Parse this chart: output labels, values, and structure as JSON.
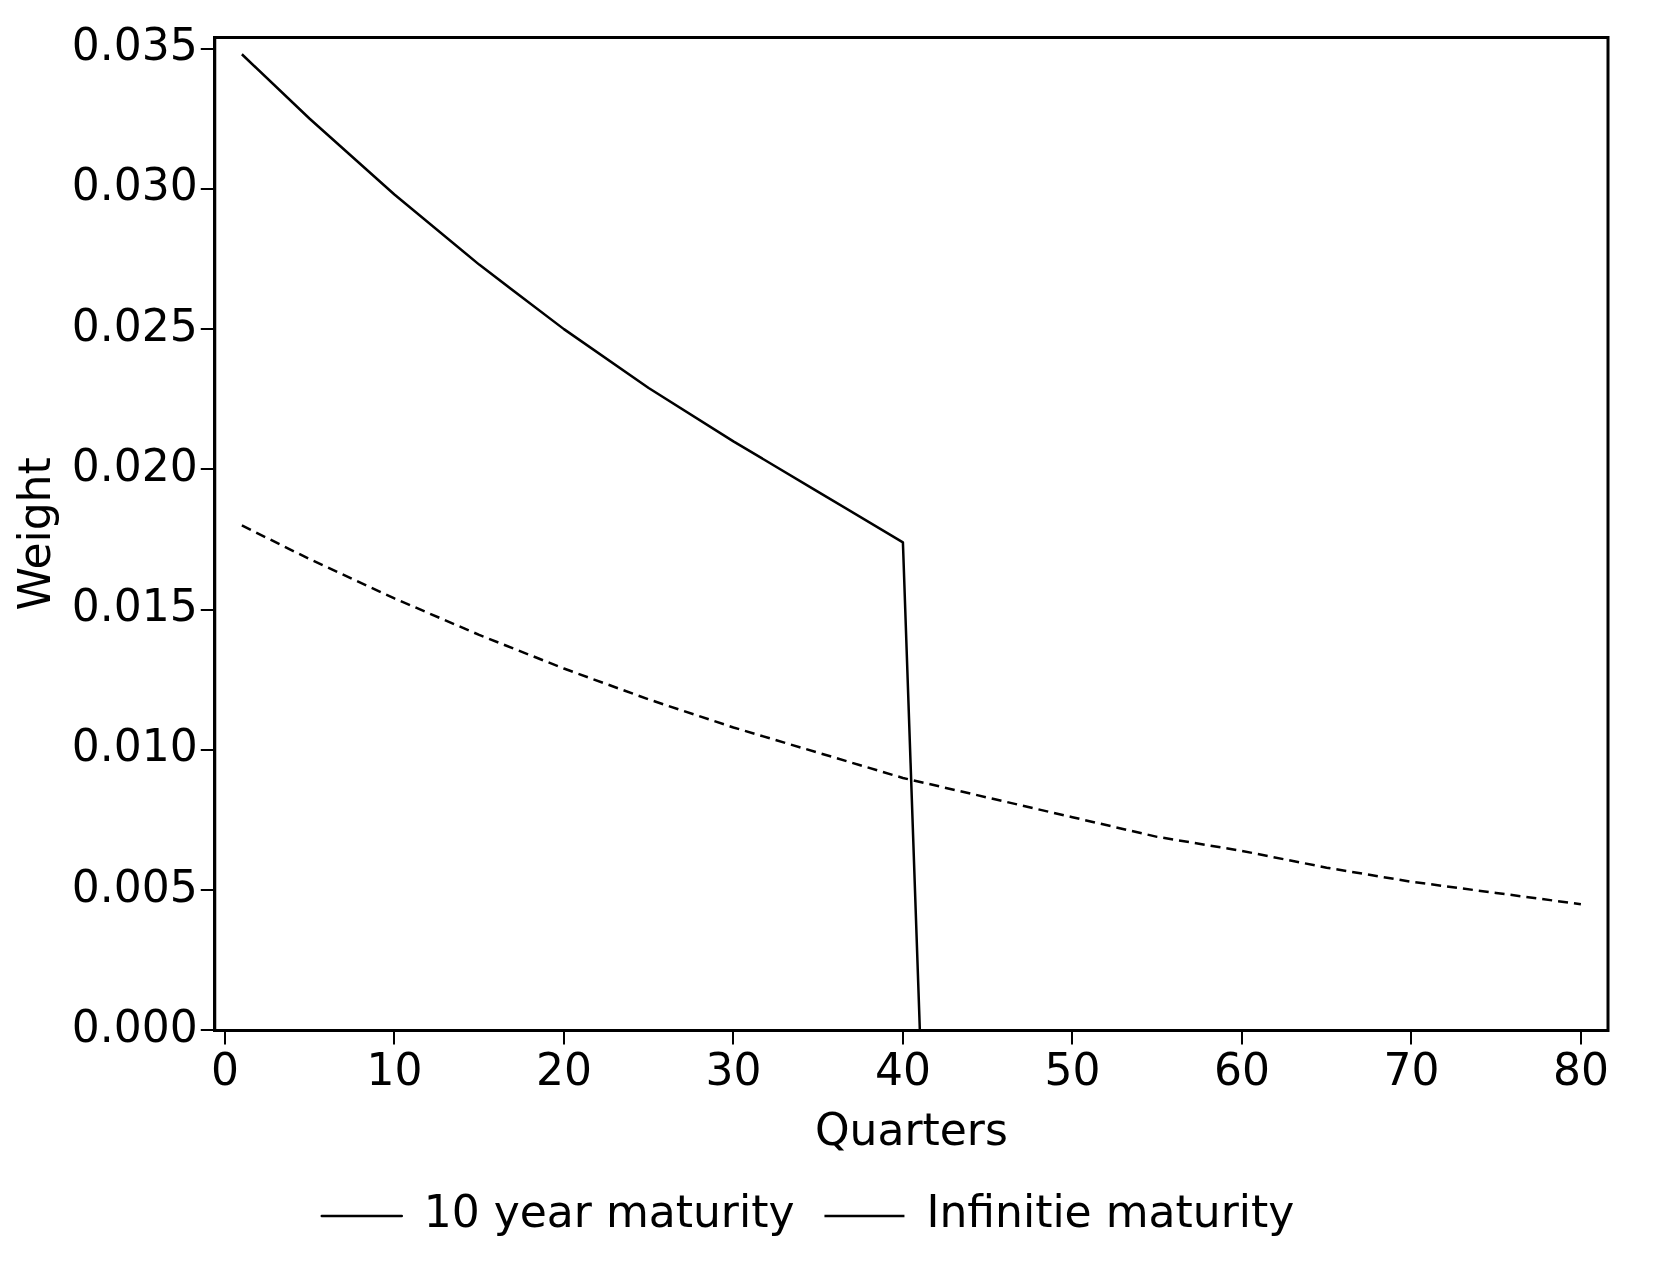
{
  "chart_data": {
    "type": "line",
    "xlabel": "Quarters",
    "ylabel": "Weight",
    "xlim": [
      -0.6,
      81.6
    ],
    "xticks": [
      0,
      10,
      20,
      30,
      40,
      50,
      60,
      70,
      80
    ],
    "ylim": [
      0,
      0.0354
    ],
    "yticks": [
      {
        "value": 0,
        "label": "0.000"
      },
      {
        "value": 0.005,
        "label": "0.005"
      },
      {
        "value": 0.01,
        "label": "0.010"
      },
      {
        "value": 0.015,
        "label": "0.015"
      },
      {
        "value": 0.02,
        "label": "0.020"
      },
      {
        "value": 0.025,
        "label": "0.025"
      },
      {
        "value": 0.03,
        "label": "0.030"
      },
      {
        "value": 0.035,
        "label": "0.035"
      }
    ],
    "grid": false,
    "legend": "bottom",
    "series": [
      {
        "name": "10 year maturity",
        "color": "#000000",
        "line_style": "solid",
        "x": [
          1,
          5,
          10,
          15,
          20,
          25,
          30,
          35,
          40,
          41,
          80
        ],
        "values": [
          0.0348,
          0.0325,
          0.0298,
          0.0273,
          0.025,
          0.0229,
          0.021,
          0.0192,
          0.0174,
          0,
          0
        ]
      },
      {
        "name": "Infinitie maturity",
        "color": "#000000",
        "line_style": "dashed",
        "x": [
          1,
          5,
          10,
          15,
          20,
          25,
          30,
          35,
          40,
          45,
          50,
          55,
          60,
          65,
          70,
          75,
          80
        ],
        "values": [
          0.018,
          0.0168,
          0.0154,
          0.0141,
          0.0129,
          0.0118,
          0.0108,
          0.0099,
          0.009,
          0.0083,
          0.0076,
          0.0069,
          0.0064,
          0.0058,
          0.0053,
          0.0049,
          0.0045
        ]
      }
    ]
  }
}
